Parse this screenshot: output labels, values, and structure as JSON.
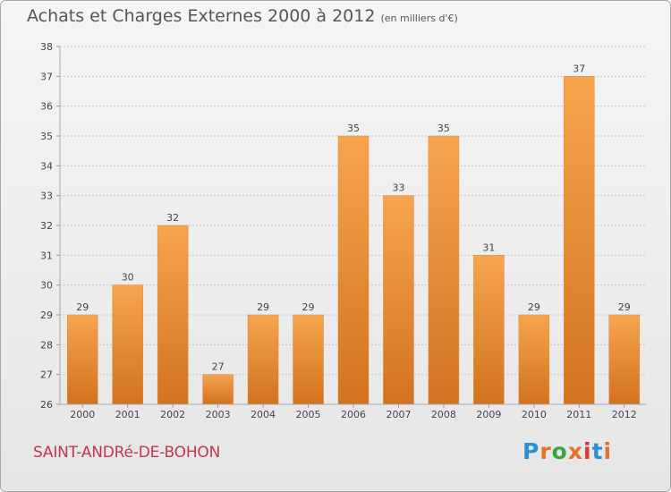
{
  "header": {
    "title": "Achats et Charges Externes 2000 à 2012",
    "unit": "(en milliers d'€)"
  },
  "footer": {
    "location": "SAINT-ANDRé-DE-BOHON",
    "logo_text": "Proxiti"
  },
  "colors": {
    "bar_light": "#f6a54e",
    "bar_dark": "#d2721f",
    "location": "#c2364d",
    "logo": [
      "#2f8fd4",
      "#e8702a",
      "#3aa63c",
      "#e8702a",
      "#d63a3a",
      "#2f8fd4",
      "#e8702a"
    ]
  },
  "chart_data": {
    "type": "bar",
    "categories": [
      "2000",
      "2001",
      "2002",
      "2003",
      "2004",
      "2005",
      "2006",
      "2007",
      "2008",
      "2009",
      "2010",
      "2011",
      "2012"
    ],
    "values": [
      29,
      30,
      32,
      27,
      29,
      29,
      35,
      33,
      35,
      31,
      29,
      37,
      29
    ],
    "title": "Achats et Charges Externes 2000 à 2012",
    "xlabel": "",
    "ylabel": "",
    "ylim": [
      26,
      38
    ],
    "yticks": [
      26,
      27,
      28,
      29,
      30,
      31,
      32,
      33,
      34,
      35,
      36,
      37,
      38
    ],
    "grid": "horizontal dashed",
    "legend": "none"
  }
}
